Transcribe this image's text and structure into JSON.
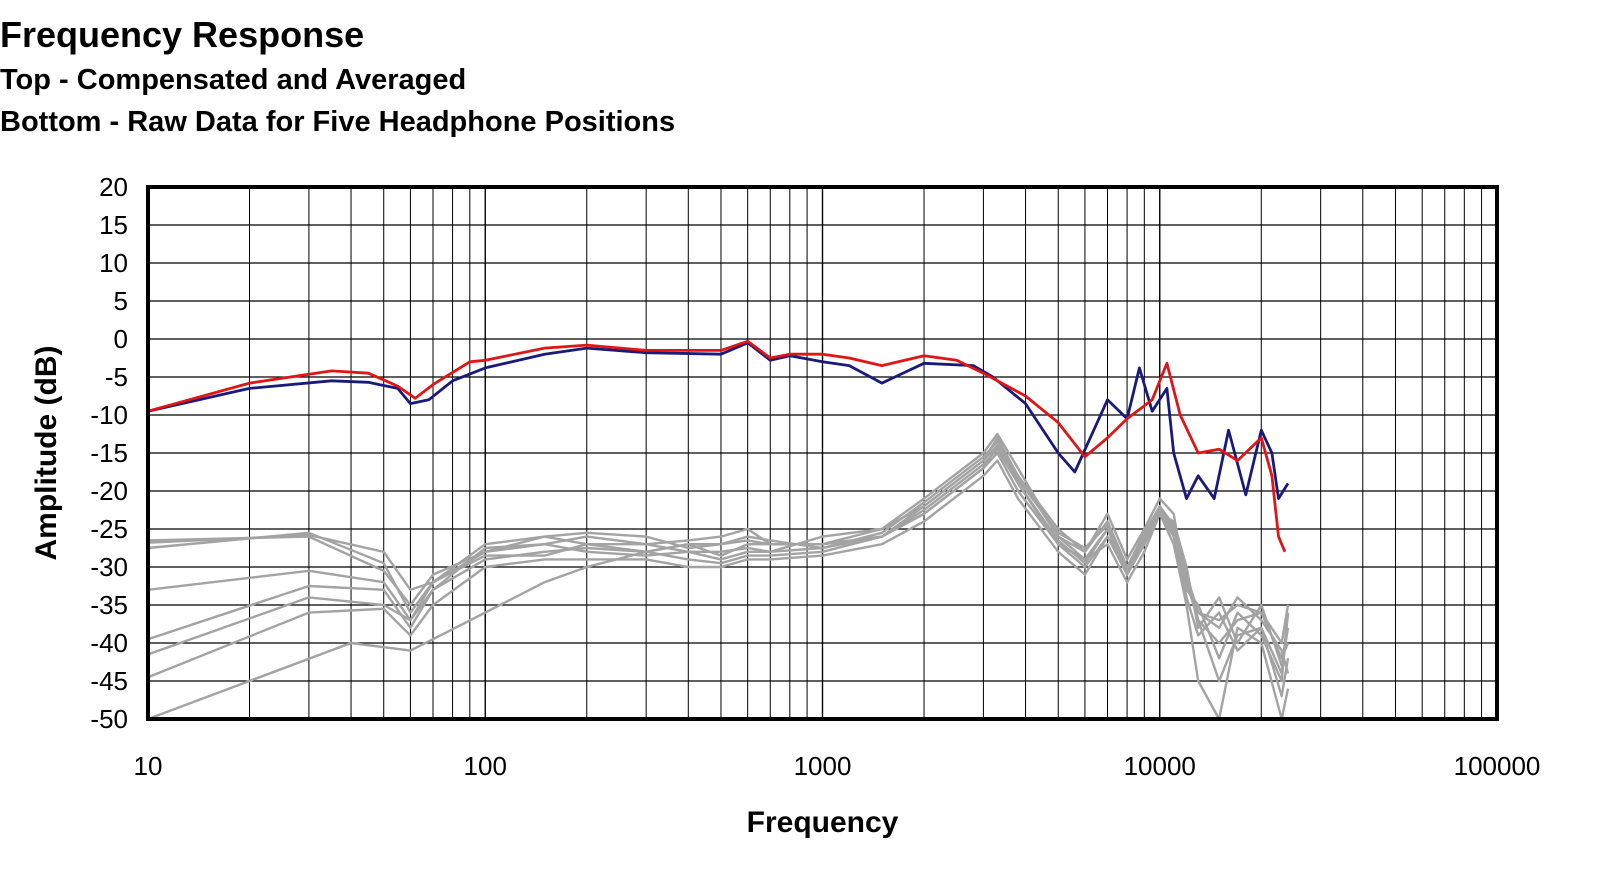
{
  "chart_data": {
    "type": "line",
    "title": "Frequency Response",
    "subtitle_lines": [
      "Top -  Compensated and Averaged",
      "Bottom - Raw Data for Five Headphone Positions"
    ],
    "xlabel": "Frequency",
    "ylabel": "Amplitude (dB)",
    "x_scale": "log",
    "xlim": [
      10,
      100000
    ],
    "ylim": [
      -50,
      20
    ],
    "x_ticks": [
      10,
      100,
      1000,
      10000,
      100000
    ],
    "x_tick_labels": [
      "10",
      "100",
      "1000",
      "10000",
      "100000"
    ],
    "y_ticks": [
      20,
      15,
      10,
      5,
      0,
      -5,
      -10,
      -15,
      -20,
      -25,
      -30,
      -35,
      -40,
      -45,
      -50
    ],
    "y_tick_labels": [
      "20",
      "15",
      "10",
      "5",
      "0",
      "-5",
      "-10",
      "-15",
      "-20",
      "-25",
      "-30",
      "-35",
      "-40",
      "-45",
      "-50"
    ],
    "grid": true,
    "legend": "none",
    "colors": {
      "blue": "#1a1a7a",
      "red": "#e01515",
      "raw": "#a3a3a3",
      "grid": "#000000"
    },
    "series": [
      {
        "color": "#1a1a7a",
        "x": [
          10,
          20,
          35,
          45,
          55,
          60,
          68,
          80,
          100,
          150,
          200,
          300,
          500,
          600,
          700,
          800,
          1000,
          1200,
          1500,
          2000,
          2800,
          3200,
          4000,
          5000,
          5600,
          7000,
          8000,
          8700,
          9500,
          10500,
          11000,
          12000,
          13000,
          14500,
          16000,
          18000,
          20000,
          21500,
          22500,
          24000
        ],
        "y": [
          -9.5,
          -6.5,
          -5.5,
          -5.7,
          -6.5,
          -8.5,
          -8.0,
          -5.5,
          -3.8,
          -2.0,
          -1.2,
          -1.8,
          -2.0,
          -0.5,
          -2.8,
          -2.2,
          -3.0,
          -3.5,
          -5.8,
          -3.2,
          -3.5,
          -5.0,
          -8.5,
          -15.0,
          -17.5,
          -8.0,
          -10.5,
          -3.8,
          -9.5,
          -6.5,
          -15.0,
          -21.0,
          -18.0,
          -21.0,
          -12.0,
          -20.5,
          -12.0,
          -15.0,
          -21.0,
          -19.0
        ]
      },
      {
        "color": "#e01515",
        "x": [
          10,
          20,
          35,
          45,
          55,
          62,
          70,
          90,
          100,
          150,
          200,
          300,
          500,
          600,
          700,
          800,
          1000,
          1200,
          1500,
          2000,
          2500,
          3000,
          4000,
          5000,
          6000,
          7000,
          8000,
          9500,
          10500,
          11500,
          13000,
          15000,
          17000,
          20000,
          21500,
          22500,
          23500
        ],
        "y": [
          -9.5,
          -5.8,
          -4.2,
          -4.5,
          -6.2,
          -7.8,
          -6.0,
          -3.0,
          -2.8,
          -1.2,
          -0.8,
          -1.5,
          -1.5,
          -0.3,
          -2.5,
          -2.0,
          -2.0,
          -2.5,
          -3.5,
          -2.2,
          -2.8,
          -4.5,
          -7.5,
          -11.0,
          -15.5,
          -13.0,
          -10.5,
          -8.0,
          -3.2,
          -10.0,
          -15.0,
          -14.5,
          -16.0,
          -13.0,
          -18.0,
          -26.0,
          -28.0
        ]
      }
    ],
    "raw_series": [
      {
        "x": [
          10,
          30,
          50,
          60,
          70,
          100,
          150,
          200,
          300,
          400,
          500,
          600,
          700,
          1000,
          1500,
          2000,
          3000,
          3300,
          3800,
          5000,
          6000,
          7000,
          8000,
          9000,
          10000,
          11000,
          12000,
          13000,
          15000,
          17000,
          20000,
          23000,
          24000
        ],
        "y": [
          -26.5,
          -26,
          -30.5,
          -35,
          -31,
          -28,
          -27,
          -26,
          -27,
          -26.5,
          -26,
          -25,
          -27,
          -27,
          -25,
          -22,
          -16,
          -13,
          -18,
          -25,
          -28,
          -24,
          -30,
          -26,
          -22,
          -26,
          -32,
          -36,
          -38,
          -34,
          -37,
          -41,
          -44
        ]
      },
      {
        "x": [
          10,
          30,
          50,
          60,
          70,
          100,
          150,
          200,
          300,
          400,
          500,
          600,
          700,
          1000,
          1500,
          2000,
          3000,
          3300,
          3800,
          5000,
          6000,
          7000,
          8000,
          9000,
          10000,
          11000,
          12000,
          13000,
          15000,
          17000,
          20000,
          23000,
          24000
        ],
        "y": [
          -27.5,
          -25.5,
          -29.5,
          -36,
          -32,
          -27,
          -26,
          -27,
          -28,
          -27,
          -28.5,
          -27,
          -27,
          -27,
          -26,
          -23,
          -17,
          -14,
          -19,
          -27,
          -30,
          -26,
          -31,
          -27,
          -23,
          -24,
          -30,
          -38,
          -34,
          -40,
          -35,
          -43,
          -38
        ]
      },
      {
        "x": [
          10,
          30,
          50,
          60,
          70,
          100,
          150,
          200,
          300,
          400,
          500,
          600,
          700,
          1000,
          1500,
          2000,
          3000,
          3300,
          3800,
          5000,
          6000,
          7000,
          8000,
          9000,
          10000,
          11000,
          12000,
          13000,
          15000,
          17000,
          20000,
          23000,
          24000
        ],
        "y": [
          -33,
          -30.5,
          -32,
          -37,
          -33,
          -27.5,
          -27,
          -28,
          -28.5,
          -28,
          -29,
          -28,
          -28,
          -26,
          -25,
          -21,
          -15,
          -12.5,
          -17,
          -26,
          -28,
          -23,
          -29,
          -25,
          -21,
          -23,
          -33,
          -35,
          -42,
          -36,
          -39,
          -45,
          -36
        ]
      },
      {
        "x": [
          10,
          30,
          50,
          60,
          70,
          100,
          150,
          200,
          300,
          400,
          500,
          600,
          700,
          1000,
          1500,
          2000,
          3000,
          3300,
          3800,
          5000,
          6000,
          7000,
          8000,
          9000,
          10000,
          11000,
          12000,
          13000,
          15000,
          17000,
          20000,
          23000,
          24000
        ],
        "y": [
          -39.5,
          -32.5,
          -33,
          -38,
          -33,
          -29,
          -28,
          -27.5,
          -28,
          -29,
          -29.5,
          -28.5,
          -28.5,
          -28,
          -26,
          -23,
          -17,
          -15,
          -20,
          -27,
          -29,
          -25,
          -31,
          -26,
          -22,
          -25,
          -31,
          -37,
          -40,
          -37,
          -36,
          -42,
          -40
        ]
      },
      {
        "x": [
          10,
          30,
          50,
          60,
          70,
          100,
          150,
          200,
          300,
          400,
          500,
          600,
          700,
          1000,
          1500,
          2000,
          3000,
          3300,
          3800,
          5000,
          6000,
          7000,
          8000,
          9000,
          10000,
          11000,
          12000,
          13000,
          15000,
          17000,
          20000,
          23000,
          24000
        ],
        "y": [
          -41.5,
          -34,
          -35,
          -37,
          -32,
          -28,
          -26,
          -25.5,
          -26,
          -27.5,
          -27,
          -26,
          -26.5,
          -27.5,
          -26,
          -22,
          -16,
          -14,
          -18,
          -26,
          -29,
          -27,
          -32,
          -28,
          -23,
          -26,
          -34,
          -39,
          -36,
          -41,
          -38,
          -47,
          -42
        ]
      },
      {
        "x": [
          10,
          30,
          50,
          60,
          70,
          100,
          150,
          200,
          300,
          400,
          500,
          600,
          700,
          1000,
          1500,
          2000,
          3000,
          3300,
          3800,
          5000,
          6000,
          7000,
          8000,
          9000,
          10000,
          11000,
          12000,
          13000,
          15000,
          17000,
          20000,
          23000,
          24000
        ],
        "y": [
          -44.5,
          -36,
          -35.5,
          -39,
          -35,
          -30,
          -29,
          -29,
          -29,
          -30,
          -30,
          -29,
          -29,
          -28.5,
          -27,
          -24,
          -18,
          -16,
          -21,
          -28,
          -31,
          -26,
          -30,
          -27,
          -23,
          -27,
          -35,
          -45,
          -50,
          -38,
          -40,
          -50,
          -46
        ]
      },
      {
        "x": [
          10,
          20,
          40,
          60,
          70,
          100,
          150,
          200,
          300,
          400,
          500,
          600,
          700,
          1000,
          1500,
          2000,
          3000,
          3300,
          3800,
          5000,
          6000,
          7000,
          8000,
          9000,
          10000,
          11000,
          12000,
          13000,
          15000,
          17000,
          20000,
          23000,
          24000
        ],
        "y": [
          -50,
          -45,
          -40,
          -41,
          -39.5,
          -36,
          -32,
          -30,
          -28,
          -27,
          -27,
          -26.5,
          -27,
          -27,
          -26,
          -22.5,
          -16.5,
          -14.5,
          -19,
          -26.5,
          -29.5,
          -25,
          -30.5,
          -26.5,
          -22.5,
          -25.5,
          -32,
          -37,
          -45,
          -39,
          -38,
          -44,
          -36
        ]
      },
      {
        "x": [
          10,
          30,
          50,
          60,
          70,
          100,
          150,
          200,
          300,
          400,
          500,
          600,
          700,
          1000,
          1500,
          2000,
          3000,
          3300,
          3800,
          5000,
          6000,
          7000,
          8000,
          9000,
          10000,
          11000,
          12000,
          13000,
          15000,
          17000,
          20000,
          23000,
          24000
        ],
        "y": [
          -26.8,
          -25.8,
          -28,
          -33,
          -32,
          -28.5,
          -28.5,
          -27,
          -27,
          -28,
          -28,
          -27.5,
          -28,
          -27.5,
          -25.5,
          -21.5,
          -15.5,
          -13.5,
          -18.5,
          -25.5,
          -27.5,
          -24.5,
          -30,
          -25.5,
          -22,
          -24.5,
          -31,
          -36,
          -37,
          -35,
          -36,
          -40,
          -35
        ]
      }
    ]
  }
}
